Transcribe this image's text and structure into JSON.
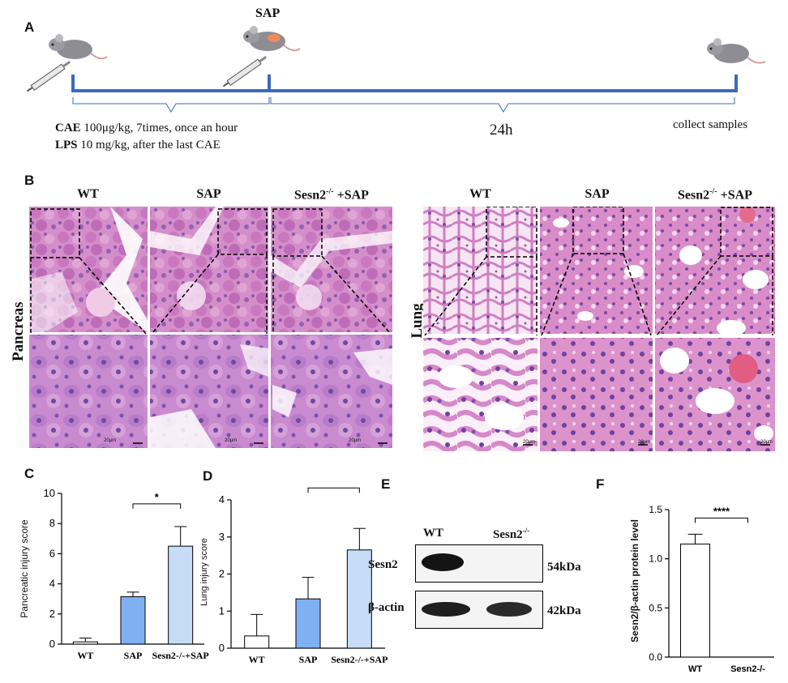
{
  "panel_labels": {
    "a": "A",
    "b": "B",
    "c": "C",
    "d": "D",
    "e": "E",
    "f": "F"
  },
  "timeline": {
    "sap_label": "SAP",
    "cae_bold": "CAE",
    "cae_text": " 100μg/kg, 7times, once an hour",
    "lps_bold": "LPS",
    "lps_text": " 10 mg/kg, after the last CAE",
    "duration": "24h",
    "end_text": "collect samples"
  },
  "histology": {
    "pancreas_title": "Pancreas",
    "lung_title": "Lung",
    "col_wt": "WT",
    "col_sap": "SAP",
    "col_ko_base": "Sesn2",
    "col_ko_sup": "-/-",
    "col_ko_tail": " +SAP",
    "scalebar": "20μm",
    "colors": {
      "tissue_pink": "#d98fc4",
      "tissue_purple": "#9a6bbd",
      "background": "#fbf3fa"
    }
  },
  "western": {
    "col_wt": "WT",
    "col_ko_base": "Sesn2",
    "col_ko_sup": "-/-",
    "row1": "Sesn2",
    "row2": "β-actin",
    "mw1": "54kDa",
    "mw2": "42kDa"
  },
  "chart_data": [
    {
      "type": "bar",
      "panel": "C",
      "ylabel": "Pancreatic injury score",
      "categories": [
        "WT",
        "SAP",
        "Sesn2-/-+SAP"
      ],
      "values": [
        0.15,
        3.15,
        6.5
      ],
      "errors": [
        0.25,
        0.3,
        1.3
      ],
      "ylim": [
        0,
        10
      ],
      "yticks": [
        "0",
        "2",
        "4",
        "6",
        "8",
        "10"
      ],
      "significance": [
        {
          "between": [
            "SAP",
            "Sesn2-/-+SAP"
          ],
          "label": "*"
        }
      ],
      "colors": [
        "#ffffff",
        "#7fb0f2",
        "#c6dcf7"
      ]
    },
    {
      "type": "bar",
      "panel": "D",
      "ylabel": "Lung injury score",
      "categories": [
        "WT",
        "SAP",
        "Sesn2-/-+SAP"
      ],
      "values": [
        0.33,
        1.33,
        2.65
      ],
      "errors": [
        0.58,
        0.58,
        0.58
      ],
      "ylim": [
        0,
        4
      ],
      "yticks": [
        "0",
        "1",
        "2",
        "3",
        "4"
      ],
      "significance": [
        {
          "between": [
            "SAP",
            "Sesn2-/-+SAP"
          ],
          "label": "*"
        }
      ],
      "colors": [
        "#ffffff",
        "#7fb0f2",
        "#c6dcf7"
      ]
    },
    {
      "type": "bar",
      "panel": "F",
      "ylabel": "Sesn2/β-actin protein level",
      "categories": [
        "WT",
        "Sesn2-/-"
      ],
      "values": [
        1.15,
        0
      ],
      "errors": [
        0.1,
        0
      ],
      "ylim": [
        0,
        1.5
      ],
      "yticks": [
        "0.0",
        "0.5",
        "1.0",
        "1.5"
      ],
      "significance": [
        {
          "between": [
            "WT",
            "Sesn2-/-"
          ],
          "label": "****"
        }
      ],
      "colors": [
        "#ffffff",
        "#ffffff"
      ]
    }
  ]
}
